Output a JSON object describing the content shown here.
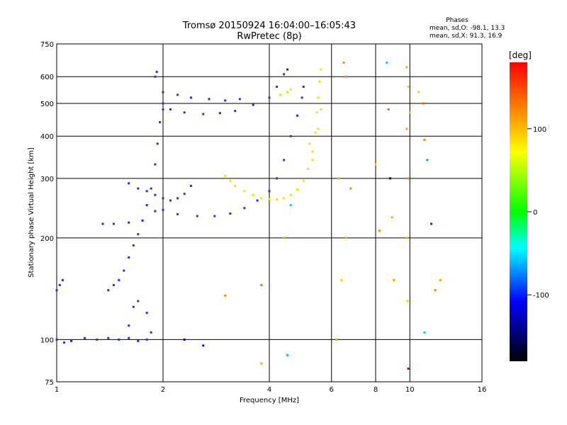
{
  "chart_data": {
    "type": "scatter",
    "title": "Tromsø 20150924 16:04:00–16:05:43",
    "subtitle": "RwPretec (8p)",
    "xlabel": "Frequency [MHz]",
    "ylabel": "Stationary phase Virtual Height [km]",
    "x_scale": "log",
    "y_scale": "log",
    "xlim": [
      1,
      16
    ],
    "ylim": [
      75,
      750
    ],
    "x_ticks": [
      1,
      2,
      4,
      6,
      8,
      10,
      16
    ],
    "y_ticks": [
      75,
      100,
      200,
      300,
      400,
      500,
      600,
      750
    ],
    "grid": true,
    "stats": {
      "heading": "Phases",
      "o_line": "mean, sd,O: -98.1, 13.3",
      "x_line": "mean, sd,X:  91.3, 16.9"
    },
    "colorbar": {
      "label": "[deg]",
      "range": [
        -180,
        180
      ],
      "ticks": [
        100,
        0,
        -100
      ],
      "colors": [
        "#ff0000",
        "#ffff00",
        "#00ff00",
        "#00ffff",
        "#0000ff",
        "#000000"
      ]
    },
    "o_trace_color": "#2233dd",
    "x_trace_color": "#e8e800",
    "o_trace_points": [
      [
        1.0,
        100
      ],
      [
        1.05,
        98
      ],
      [
        1.1,
        99
      ],
      [
        1.2,
        101
      ],
      [
        1.3,
        100
      ],
      [
        1.4,
        101
      ],
      [
        1.5,
        100
      ],
      [
        1.6,
        101
      ],
      [
        1.7,
        99
      ],
      [
        1.8,
        100
      ],
      [
        1.0,
        140
      ],
      [
        1.02,
        145
      ],
      [
        1.04,
        150
      ],
      [
        1.4,
        140
      ],
      [
        1.45,
        145
      ],
      [
        1.5,
        150
      ],
      [
        1.55,
        160
      ],
      [
        1.6,
        175
      ],
      [
        1.65,
        190
      ],
      [
        1.7,
        205
      ],
      [
        1.75,
        225
      ],
      [
        1.8,
        250
      ],
      [
        1.85,
        280
      ],
      [
        1.9,
        330
      ],
      [
        1.93,
        380
      ],
      [
        1.96,
        440
      ],
      [
        2.0,
        480
      ],
      [
        1.9,
        600
      ],
      [
        1.92,
        620
      ],
      [
        2.0,
        500
      ],
      [
        2.1,
        480
      ],
      [
        2.3,
        470
      ],
      [
        2.6,
        465
      ],
      [
        2.9,
        468
      ],
      [
        3.2,
        475
      ],
      [
        3.6,
        495
      ],
      [
        4.0,
        520
      ],
      [
        4.2,
        560
      ],
      [
        4.4,
        610
      ],
      [
        4.5,
        630
      ],
      [
        1.35,
        220
      ],
      [
        1.45,
        220
      ],
      [
        1.6,
        222
      ],
      [
        1.75,
        225
      ],
      [
        1.9,
        240
      ],
      [
        2.0,
        242
      ],
      [
        2.2,
        235
      ],
      [
        2.5,
        232
      ],
      [
        2.8,
        232
      ],
      [
        3.1,
        236
      ],
      [
        3.4,
        245
      ],
      [
        3.7,
        258
      ],
      [
        4.0,
        275
      ],
      [
        4.2,
        300
      ],
      [
        4.4,
        340
      ],
      [
        4.6,
        400
      ],
      [
        4.8,
        460
      ],
      [
        4.95,
        520
      ],
      [
        5.0,
        560
      ],
      [
        1.6,
        290
      ],
      [
        1.7,
        280
      ],
      [
        1.8,
        275
      ],
      [
        1.9,
        268
      ],
      [
        2.0,
        262
      ],
      [
        2.1,
        258
      ],
      [
        2.2,
        262
      ],
      [
        2.3,
        270
      ],
      [
        2.4,
        285
      ],
      [
        1.65,
        125
      ],
      [
        1.7,
        130
      ],
      [
        1.8,
        120
      ],
      [
        1.6,
        110
      ],
      [
        1.85,
        105
      ],
      [
        2.0,
        540
      ],
      [
        2.2,
        530
      ],
      [
        2.4,
        520
      ],
      [
        2.7,
        515
      ],
      [
        3.0,
        510
      ],
      [
        3.3,
        515
      ]
    ],
    "x_trace_points": [
      [
        3.0,
        305
      ],
      [
        3.1,
        295
      ],
      [
        3.2,
        285
      ],
      [
        3.4,
        275
      ],
      [
        3.6,
        268
      ],
      [
        3.8,
        262
      ],
      [
        4.0,
        260
      ],
      [
        4.2,
        260
      ],
      [
        4.4,
        262
      ],
      [
        4.6,
        268
      ],
      [
        4.8,
        278
      ],
      [
        5.0,
        295
      ],
      [
        5.15,
        320
      ],
      [
        5.3,
        360
      ],
      [
        5.4,
        410
      ],
      [
        5.45,
        470
      ],
      [
        5.5,
        520
      ],
      [
        5.55,
        580
      ],
      [
        5.6,
        630
      ],
      [
        4.3,
        530
      ],
      [
        4.5,
        540
      ],
      [
        4.6,
        550
      ],
      [
        5.2,
        380
      ],
      [
        5.3,
        340
      ],
      [
        5.5,
        420
      ],
      [
        5.6,
        480
      ]
    ],
    "scattered_points": [
      [
        6.5,
        660,
        "#ff8800"
      ],
      [
        6.6,
        600,
        "#ff8800"
      ],
      [
        6.3,
        300,
        "#ffaa00"
      ],
      [
        6.8,
        280,
        "#ff8800"
      ],
      [
        6.4,
        150,
        "#ffcc00"
      ],
      [
        6.6,
        200,
        "#ffaa00"
      ],
      [
        6.2,
        100,
        "#ffaa00"
      ],
      [
        8.0,
        330,
        "#ffcc00"
      ],
      [
        8.2,
        210,
        "#ff8800"
      ],
      [
        8.6,
        660,
        "#00ccff"
      ],
      [
        8.7,
        480,
        "#ff6600"
      ],
      [
        8.8,
        300,
        "#000066"
      ],
      [
        8.9,
        230,
        "#ffaa00"
      ],
      [
        9.0,
        150,
        "#ffaa00"
      ],
      [
        9.8,
        640,
        "#ffaa00"
      ],
      [
        9.9,
        560,
        "#ffcc00"
      ],
      [
        9.8,
        420,
        "#ffaa00"
      ],
      [
        9.9,
        300,
        "#ff8800"
      ],
      [
        9.8,
        200,
        "#ffaa00"
      ],
      [
        9.85,
        130,
        "#ffcc00"
      ],
      [
        9.9,
        82,
        "#cc0000"
      ],
      [
        10.0,
        470,
        "#ffcc00"
      ],
      [
        10.6,
        540,
        "#ffcc00"
      ],
      [
        10.9,
        500,
        "#ff6600"
      ],
      [
        11.0,
        390,
        "#ff8800"
      ],
      [
        11.2,
        340,
        "#00aaff"
      ],
      [
        11.5,
        220,
        "#cc0000"
      ],
      [
        11.8,
        140,
        "#ff8800"
      ],
      [
        12.2,
        150,
        "#ffaa00"
      ],
      [
        11.0,
        105,
        "#00ccff"
      ],
      [
        3.8,
        145,
        "#ff6600"
      ],
      [
        3.8,
        85,
        "#ffaa00"
      ],
      [
        4.5,
        90,
        "#00ccff"
      ],
      [
        4.4,
        200,
        "#ffaa00"
      ],
      [
        4.6,
        250,
        "#00ccff"
      ],
      [
        2.3,
        100,
        "#0000ff"
      ],
      [
        2.6,
        96,
        "#0000ff"
      ],
      [
        3.0,
        135,
        "#ff8800"
      ]
    ]
  }
}
